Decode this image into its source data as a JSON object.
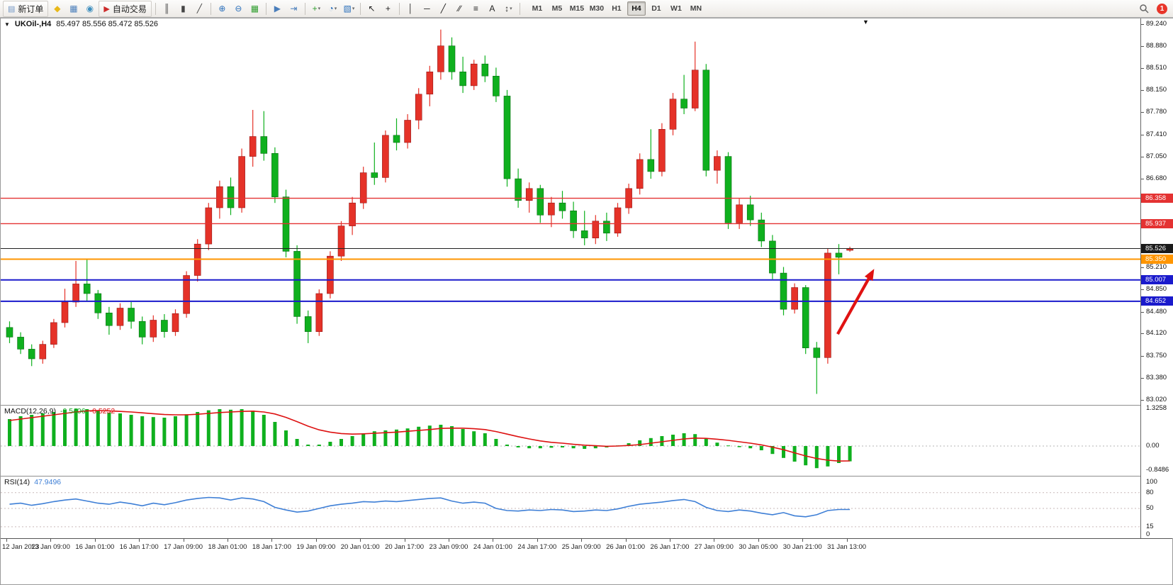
{
  "toolbar": {
    "notification_count": "1",
    "active_timeframe": "H4",
    "timeframes": [
      "M1",
      "M5",
      "M15",
      "M30",
      "H1",
      "H4",
      "D1",
      "W1",
      "MN"
    ],
    "items": [
      {
        "t": "btn",
        "name": "new-order-button",
        "icon_name": "new-order-icon",
        "g": "▤",
        "c": "#6f94c4",
        "label": "新订单"
      },
      {
        "t": "ico",
        "name": "alerts-icon",
        "g": "◆",
        "c": "#e8b818"
      },
      {
        "t": "ico",
        "name": "new-chart-icon",
        "g": "▦",
        "c": "#4a7ebb"
      },
      {
        "t": "ico",
        "name": "profiles-icon",
        "g": "◉",
        "c": "#3f8fbf"
      },
      {
        "t": "btn",
        "name": "auto-trading-button",
        "icon_name": "auto-trading-icon",
        "g": "▶",
        "c": "#cc2a2a",
        "label": "自动交易"
      },
      {
        "t": "sep"
      },
      {
        "t": "ico",
        "name": "bar-chart-icon",
        "g": "║",
        "c": "#444"
      },
      {
        "t": "ico",
        "name": "candlestick-chart-icon",
        "g": "▮",
        "c": "#444"
      },
      {
        "t": "ico",
        "name": "line-chart-icon",
        "g": "╱",
        "c": "#444"
      },
      {
        "t": "sep"
      },
      {
        "t": "ico",
        "name": "zoom-in-icon",
        "g": "⊕",
        "c": "#2a6fbb"
      },
      {
        "t": "ico",
        "name": "zoom-out-icon",
        "g": "⊖",
        "c": "#2a6fbb"
      },
      {
        "t": "ico",
        "name": "tile-windows-icon",
        "g": "▦",
        "c": "#2f9e2f"
      },
      {
        "t": "sep"
      },
      {
        "t": "ico",
        "name": "auto-scroll-icon",
        "g": "▶",
        "c": "#4a7ebb"
      },
      {
        "t": "ico",
        "name": "chart-shift-icon",
        "g": "⇥",
        "c": "#4a7ebb"
      },
      {
        "t": "sep"
      },
      {
        "t": "ico",
        "name": "indicators-icon",
        "g": "+",
        "c": "#2f9e2f",
        "dd": true
      },
      {
        "t": "ico",
        "name": "periods-icon",
        "g": "◔",
        "c": "#2a6fbb",
        "dd": true
      },
      {
        "t": "ico",
        "name": "templates-icon",
        "g": "▧",
        "c": "#2a6fbb",
        "dd": true
      },
      {
        "t": "sep"
      },
      {
        "t": "ico",
        "name": "cursor-icon",
        "g": "↖",
        "c": "#222"
      },
      {
        "t": "ico",
        "name": "crosshair-icon",
        "g": "+",
        "c": "#222"
      },
      {
        "t": "sep"
      },
      {
        "t": "ico",
        "name": "vertical-line-icon",
        "g": "│",
        "c": "#222"
      },
      {
        "t": "ico",
        "name": "horizontal-line-icon",
        "g": "─",
        "c": "#222"
      },
      {
        "t": "ico",
        "name": "trendline-icon",
        "g": "╱",
        "c": "#222"
      },
      {
        "t": "ico",
        "name": "channel-icon",
        "g": "∕∕",
        "c": "#222"
      },
      {
        "t": "ico",
        "name": "fibonacci-icon",
        "g": "≡",
        "c": "#222"
      },
      {
        "t": "ico",
        "name": "text-icon",
        "g": "A",
        "c": "#222"
      },
      {
        "t": "ico",
        "name": "arrows-icon",
        "g": "↕",
        "c": "#222",
        "dd": true
      },
      {
        "t": "sep"
      }
    ]
  },
  "chart": {
    "symbol_period": "UKOil-,H4",
    "ohlc": "85.497 85.556 85.472 85.526"
  },
  "price_scale": {
    "ticks": [
      {
        "label": "89.240",
        "price": 89.24
      },
      {
        "label": "88.880",
        "price": 88.88
      },
      {
        "label": "88.510",
        "price": 88.51
      },
      {
        "label": "88.150",
        "price": 88.15
      },
      {
        "label": "87.780",
        "price": 87.78
      },
      {
        "label": "87.410",
        "price": 87.41
      },
      {
        "label": "87.050",
        "price": 87.05
      },
      {
        "label": "86.680",
        "price": 86.68
      },
      {
        "label": "85.210",
        "price": 85.21
      },
      {
        "label": "84.850",
        "price": 84.85
      },
      {
        "label": "84.480",
        "price": 84.48
      },
      {
        "label": "84.120",
        "price": 84.12
      },
      {
        "label": "83.750",
        "price": 83.75
      },
      {
        "label": "83.380",
        "price": 83.38
      },
      {
        "label": "83.020",
        "price": 83.02
      }
    ],
    "badges": [
      {
        "label": "86.358",
        "price": 86.358,
        "color": "#e43232"
      },
      {
        "label": "85.937",
        "price": 85.937,
        "color": "#e43232"
      },
      {
        "label": "85.526",
        "price": 85.526,
        "color": "#1a1a1a"
      },
      {
        "label": "85.350",
        "price": 85.35,
        "color": "#ff9500"
      },
      {
        "label": "85.007",
        "price": 85.007,
        "color": "#1a1acc"
      },
      {
        "label": "84.652",
        "price": 84.652,
        "color": "#1a1acc"
      }
    ]
  },
  "indicators": {
    "macd": {
      "name": "MACD(12,26,9)",
      "value_main": "-0.5406",
      "value_signal": "-0.5252",
      "scale": [
        {
          "label": "1.3258",
          "value": 1.3258
        },
        {
          "label": "0.00",
          "value": 0
        },
        {
          "label": "-0.8486",
          "value": -0.8486
        }
      ]
    },
    "rsi": {
      "name": "RSI(14)",
      "value": "47.9496",
      "levels": [
        80,
        50,
        15
      ],
      "scale": [
        {
          "label": "100",
          "value": 100
        },
        {
          "label": "80",
          "value": 80
        },
        {
          "label": "50",
          "value": 50
        },
        {
          "label": "15",
          "value": 15
        },
        {
          "label": "0",
          "value": 0
        }
      ]
    }
  },
  "chart_data": {
    "type": "candlestick",
    "symbol": "UKOil-",
    "period": "H4",
    "title": "UKOil-,H4 85.497 85.556 85.472 85.526",
    "y_range": [
      83.02,
      89.24
    ],
    "label_every": 4,
    "x_labels": [
      "12 Jan 2023",
      "13 Jan 09:00",
      "16 Jan 01:00",
      "16 Jan 17:00",
      "17 Jan 09:00",
      "18 Jan 01:00",
      "18 Jan 17:00",
      "19 Jan 09:00",
      "20 Jan 01:00",
      "20 Jan 17:00",
      "23 Jan 09:00",
      "24 Jan 01:00",
      "24 Jan 17:00",
      "25 Jan 09:00",
      "26 Jan 01:00",
      "26 Jan 17:00",
      "27 Jan 09:00",
      "30 Jan 05:00",
      "30 Jan 21:00",
      "31 Jan 13:00"
    ],
    "candles_ohlc": [
      [
        84.22,
        84.32,
        83.96,
        84.06
      ],
      [
        84.06,
        84.14,
        83.78,
        83.86
      ],
      [
        83.86,
        83.94,
        83.58,
        83.7
      ],
      [
        83.7,
        84.0,
        83.62,
        83.94
      ],
      [
        83.94,
        84.36,
        83.88,
        84.3
      ],
      [
        84.3,
        84.86,
        84.22,
        84.64
      ],
      [
        84.64,
        85.32,
        84.56,
        84.94
      ],
      [
        84.94,
        85.36,
        84.66,
        84.78
      ],
      [
        84.78,
        84.84,
        84.36,
        84.46
      ],
      [
        84.46,
        84.56,
        84.1,
        84.25
      ],
      [
        84.25,
        84.62,
        84.18,
        84.54
      ],
      [
        84.54,
        84.64,
        84.2,
        84.32
      ],
      [
        84.32,
        84.4,
        83.94,
        84.06
      ],
      [
        84.06,
        84.42,
        83.98,
        84.34
      ],
      [
        84.34,
        84.44,
        84.05,
        84.15
      ],
      [
        84.15,
        84.52,
        84.08,
        84.45
      ],
      [
        84.45,
        85.15,
        84.38,
        85.08
      ],
      [
        85.08,
        85.68,
        84.98,
        85.6
      ],
      [
        85.6,
        86.28,
        85.5,
        86.2
      ],
      [
        86.2,
        86.65,
        86.02,
        86.55
      ],
      [
        86.55,
        86.7,
        86.08,
        86.2
      ],
      [
        86.2,
        87.18,
        86.12,
        87.05
      ],
      [
        87.05,
        87.82,
        86.88,
        87.38
      ],
      [
        87.38,
        87.8,
        86.98,
        87.1
      ],
      [
        87.1,
        87.2,
        86.28,
        86.38
      ],
      [
        86.38,
        86.5,
        85.38,
        85.48
      ],
      [
        85.48,
        85.58,
        84.28,
        84.4
      ],
      [
        84.4,
        84.5,
        83.96,
        84.15
      ],
      [
        84.15,
        84.85,
        84.08,
        84.78
      ],
      [
        84.78,
        85.48,
        84.7,
        85.4
      ],
      [
        85.4,
        85.98,
        85.32,
        85.9
      ],
      [
        85.9,
        86.38,
        85.75,
        86.28
      ],
      [
        86.28,
        86.88,
        86.18,
        86.78
      ],
      [
        86.78,
        87.28,
        86.58,
        86.7
      ],
      [
        86.7,
        87.48,
        86.62,
        87.4
      ],
      [
        87.4,
        87.68,
        87.15,
        87.28
      ],
      [
        87.28,
        87.75,
        87.18,
        87.65
      ],
      [
        87.65,
        88.18,
        87.5,
        88.08
      ],
      [
        88.08,
        88.55,
        87.88,
        88.45
      ],
      [
        88.45,
        89.15,
        88.32,
        88.88
      ],
      [
        88.88,
        89.02,
        88.32,
        88.45
      ],
      [
        88.45,
        88.7,
        88.1,
        88.22
      ],
      [
        88.22,
        88.65,
        88.15,
        88.58
      ],
      [
        88.58,
        88.72,
        88.28,
        88.38
      ],
      [
        88.38,
        88.52,
        87.95,
        88.05
      ],
      [
        88.05,
        88.15,
        86.55,
        86.68
      ],
      [
        86.68,
        86.85,
        86.2,
        86.32
      ],
      [
        86.32,
        86.62,
        86.12,
        86.52
      ],
      [
        86.52,
        86.58,
        85.95,
        86.08
      ],
      [
        86.08,
        86.38,
        85.88,
        86.28
      ],
      [
        86.28,
        86.48,
        86.02,
        86.15
      ],
      [
        86.15,
        86.3,
        85.7,
        85.82
      ],
      [
        85.82,
        86.15,
        85.58,
        85.7
      ],
      [
        85.7,
        86.08,
        85.6,
        85.98
      ],
      [
        85.98,
        86.12,
        85.65,
        85.78
      ],
      [
        85.78,
        86.28,
        85.72,
        86.2
      ],
      [
        86.2,
        86.6,
        86.1,
        86.52
      ],
      [
        86.52,
        87.1,
        86.42,
        87.0
      ],
      [
        87.0,
        87.5,
        86.68,
        86.8
      ],
      [
        86.8,
        87.6,
        86.72,
        87.5
      ],
      [
        87.5,
        88.1,
        87.4,
        88.0
      ],
      [
        88.0,
        88.4,
        87.75,
        87.85
      ],
      [
        87.85,
        88.95,
        87.8,
        88.48
      ],
      [
        88.48,
        88.58,
        86.72,
        86.82
      ],
      [
        86.82,
        87.15,
        86.6,
        87.05
      ],
      [
        87.05,
        87.12,
        85.85,
        85.95
      ],
      [
        85.95,
        86.35,
        85.85,
        86.25
      ],
      [
        86.25,
        86.4,
        85.9,
        86.0
      ],
      [
        86.0,
        86.12,
        85.55,
        85.65
      ],
      [
        85.65,
        85.75,
        85.02,
        85.12
      ],
      [
        85.12,
        85.22,
        84.42,
        84.52
      ],
      [
        84.52,
        84.95,
        84.45,
        84.88
      ],
      [
        84.88,
        84.92,
        83.78,
        83.88
      ],
      [
        83.88,
        83.98,
        83.12,
        83.72
      ],
      [
        83.72,
        85.52,
        83.62,
        85.45
      ],
      [
        85.45,
        85.6,
        85.1,
        85.38
      ],
      [
        85.497,
        85.556,
        85.472,
        85.526
      ]
    ],
    "hlines": [
      {
        "price": 86.358,
        "color": "#e43232",
        "width": 1.4
      },
      {
        "price": 85.937,
        "color": "#e43232",
        "width": 1.4
      },
      {
        "price": 85.526,
        "color": "#202020",
        "width": 1
      },
      {
        "price": 85.35,
        "color": "#ff9500",
        "width": 2
      },
      {
        "price": 85.007,
        "color": "#1a1acc",
        "width": 2
      },
      {
        "price": 84.652,
        "color": "#1a1acc",
        "width": 2
      }
    ],
    "macd": {
      "main": [
        0.95,
        1.05,
        1.1,
        1.15,
        1.2,
        1.28,
        1.32,
        1.3,
        1.25,
        1.18,
        1.15,
        1.1,
        1.05,
        1.02,
        1.0,
        1.05,
        1.12,
        1.2,
        1.26,
        1.3,
        1.28,
        1.3,
        1.25,
        1.1,
        0.85,
        0.55,
        0.25,
        0.05,
        0.05,
        0.15,
        0.25,
        0.35,
        0.45,
        0.52,
        0.55,
        0.58,
        0.62,
        0.68,
        0.72,
        0.75,
        0.7,
        0.6,
        0.52,
        0.45,
        0.25,
        0.05,
        -0.05,
        -0.08,
        -0.08,
        -0.06,
        -0.05,
        -0.08,
        -0.1,
        -0.08,
        -0.05,
        0.02,
        0.1,
        0.2,
        0.28,
        0.35,
        0.4,
        0.45,
        0.42,
        0.25,
        0.12,
        0.02,
        -0.04,
        -0.08,
        -0.15,
        -0.28,
        -0.42,
        -0.55,
        -0.68,
        -0.78,
        -0.72,
        -0.6,
        -0.5406
      ],
      "signal": [
        0.9,
        0.95,
        1.0,
        1.05,
        1.1,
        1.15,
        1.2,
        1.24,
        1.25,
        1.24,
        1.22,
        1.2,
        1.17,
        1.14,
        1.11,
        1.1,
        1.1,
        1.12,
        1.15,
        1.18,
        1.2,
        1.22,
        1.23,
        1.2,
        1.13,
        1.01,
        0.86,
        0.7,
        0.57,
        0.49,
        0.44,
        0.42,
        0.43,
        0.45,
        0.47,
        0.49,
        0.52,
        0.55,
        0.58,
        0.62,
        0.63,
        0.63,
        0.61,
        0.58,
        0.51,
        0.42,
        0.33,
        0.25,
        0.18,
        0.13,
        0.1,
        0.06,
        0.03,
        0.01,
        -0.01,
        0.0,
        0.02,
        0.05,
        0.1,
        0.15,
        0.2,
        0.25,
        0.28,
        0.27,
        0.24,
        0.2,
        0.15,
        0.1,
        0.04,
        -0.04,
        -0.13,
        -0.24,
        -0.35,
        -0.44,
        -0.5,
        -0.53,
        -0.5252
      ]
    },
    "rsi": [
      58,
      60,
      56,
      59,
      63,
      66,
      68,
      64,
      60,
      58,
      62,
      59,
      55,
      60,
      57,
      61,
      66,
      69,
      71,
      70,
      66,
      70,
      68,
      63,
      52,
      47,
      43,
      45,
      50,
      55,
      58,
      60,
      63,
      62,
      64,
      63,
      65,
      67,
      69,
      70,
      64,
      60,
      62,
      60,
      50,
      46,
      45,
      47,
      46,
      48,
      47,
      44,
      45,
      47,
      46,
      49,
      54,
      58,
      60,
      62,
      65,
      67,
      63,
      52,
      46,
      44,
      47,
      45,
      41,
      38,
      42,
      36,
      34,
      38,
      46,
      48,
      47.9496
    ],
    "arrow": {
      "from_index": 74.9,
      "from_price": 84.11,
      "to_index": 78.2,
      "to_price": 85.19,
      "color": "#e01212"
    },
    "colors": {
      "up": "#e53228",
      "down": "#0fb01e",
      "macd_hist": "#0fb01e",
      "macd_signal": "#dd1111",
      "rsi_line": "#3e7fd6"
    }
  }
}
